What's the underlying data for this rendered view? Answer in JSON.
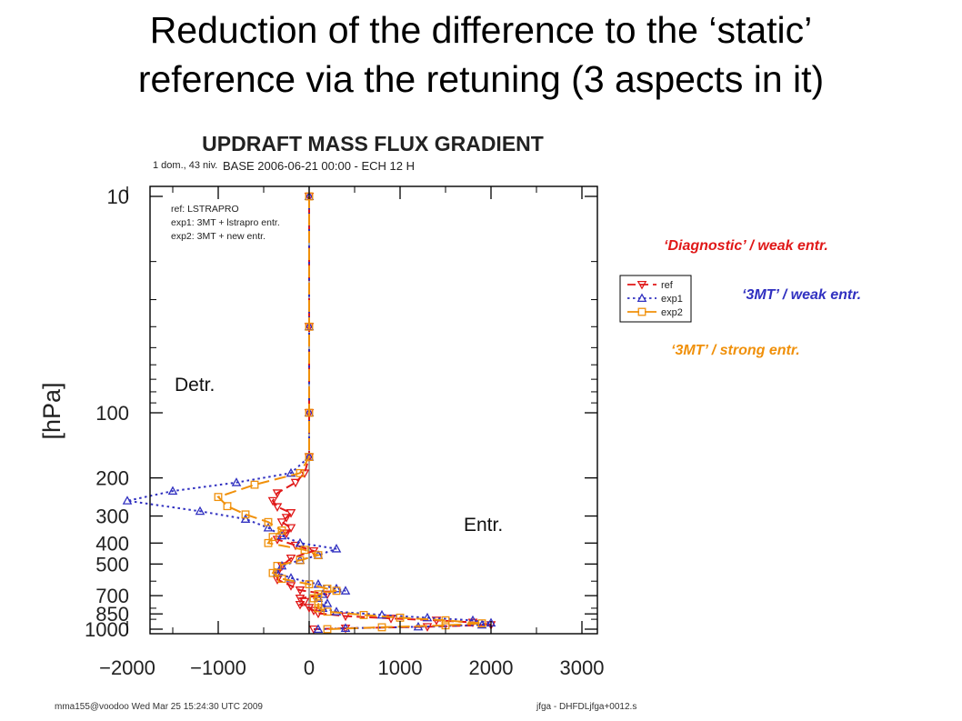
{
  "slide": {
    "title_line1": "Reduction of the difference to the ‘static’",
    "title_line2": "reference via the retuning (3 aspects in it)"
  },
  "annotations": {
    "diagnostic": "‘Diagnostic’ / weak entr.",
    "mt_weak": "‘3MT’ / weak entr.",
    "mt_strong": "‘3MT’ / strong entr.",
    "detr": "Detr.",
    "entr": "Entr.",
    "colors": {
      "diagnostic": "#e01818",
      "mt_weak": "#3030c0",
      "mt_strong": "#f0900a"
    }
  },
  "footer": {
    "left": "mma155@voodoo Wed Mar 25 15:24:30 UTC 2009",
    "right": "jfga - DHFDLjfga+0012.s"
  },
  "chart_data": {
    "type": "line",
    "title": "UPDRAFT MASS FLUX GRADIENT",
    "subtitle_left": "1 dom., 43 niv.",
    "subtitle": "BASE 2006-06-21 00:00 - ECH 12 H",
    "ylabel": "[hPa]",
    "xlabel": "",
    "xlim": [
      -2000,
      3000
    ],
    "x_ticks": [
      -2000,
      -1000,
      0,
      1000,
      2000,
      3000
    ],
    "y_scale": "log",
    "y_reversed": true,
    "y_ticks": [
      10,
      100,
      200,
      300,
      400,
      500,
      700,
      850,
      1000
    ],
    "zero_line": true,
    "legend_text": [
      "ref:  LSTRAPRO",
      "exp1: 3MT + lstrapro entr.",
      "exp2: 3MT + new entr."
    ],
    "legend_box_position": "right",
    "series": [
      {
        "name": "ref",
        "color": "#e01818",
        "dash": "dash",
        "marker": "triangle-down",
        "points": [
          [
            0,
            10
          ],
          [
            0,
            20
          ],
          [
            0,
            40
          ],
          [
            0,
            70
          ],
          [
            0,
            100
          ],
          [
            0,
            130
          ],
          [
            0,
            160
          ],
          [
            -50,
            190
          ],
          [
            -150,
            210
          ],
          [
            -350,
            235
          ],
          [
            -400,
            255
          ],
          [
            -350,
            272
          ],
          [
            -200,
            290
          ],
          [
            -250,
            305
          ],
          [
            -300,
            320
          ],
          [
            -200,
            340
          ],
          [
            -250,
            360
          ],
          [
            -350,
            385
          ],
          [
            -150,
            410
          ],
          [
            50,
            435
          ],
          [
            -200,
            470
          ],
          [
            -300,
            510
          ],
          [
            -350,
            550
          ],
          [
            -350,
            590
          ],
          [
            -200,
            630
          ],
          [
            -100,
            660
          ],
          [
            200,
            690
          ],
          [
            -100,
            720
          ],
          [
            -50,
            745
          ],
          [
            -100,
            770
          ],
          [
            0,
            795
          ],
          [
            50,
            820
          ],
          [
            100,
            845
          ],
          [
            400,
            870
          ],
          [
            900,
            892
          ],
          [
            1400,
            910
          ],
          [
            1800,
            930
          ],
          [
            2000,
            955
          ],
          [
            1300,
            975
          ],
          [
            400,
            990
          ],
          [
            50,
            1000
          ]
        ]
      },
      {
        "name": "exp1",
        "color": "#3030c0",
        "dash": "dot",
        "marker": "triangle-up",
        "points": [
          [
            0,
            10
          ],
          [
            0,
            20
          ],
          [
            0,
            40
          ],
          [
            0,
            70
          ],
          [
            0,
            100
          ],
          [
            0,
            130
          ],
          [
            0,
            160
          ],
          [
            -200,
            190
          ],
          [
            -800,
            210
          ],
          [
            -1500,
            230
          ],
          [
            -2000,
            255
          ],
          [
            -1200,
            285
          ],
          [
            -700,
            310
          ],
          [
            -450,
            340
          ],
          [
            -300,
            370
          ],
          [
            -100,
            400
          ],
          [
            300,
            425
          ],
          [
            100,
            455
          ],
          [
            -100,
            480
          ],
          [
            -300,
            510
          ],
          [
            -350,
            550
          ],
          [
            -200,
            580
          ],
          [
            100,
            620
          ],
          [
            300,
            650
          ],
          [
            400,
            665
          ],
          [
            150,
            690
          ],
          [
            100,
            720
          ],
          [
            200,
            760
          ],
          [
            150,
            800
          ],
          [
            300,
            830
          ],
          [
            800,
            860
          ],
          [
            1300,
            885
          ],
          [
            1800,
            910
          ],
          [
            2000,
            935
          ],
          [
            1900,
            955
          ],
          [
            1200,
            975
          ],
          [
            400,
            990
          ],
          [
            100,
            1000
          ]
        ]
      },
      {
        "name": "exp2",
        "color": "#f0900a",
        "dash": "longdash",
        "marker": "square",
        "points": [
          [
            0,
            10
          ],
          [
            0,
            20
          ],
          [
            0,
            40
          ],
          [
            0,
            70
          ],
          [
            0,
            100
          ],
          [
            0,
            130
          ],
          [
            0,
            160
          ],
          [
            -100,
            190
          ],
          [
            -600,
            215
          ],
          [
            -1000,
            245
          ],
          [
            -900,
            270
          ],
          [
            -700,
            295
          ],
          [
            -450,
            320
          ],
          [
            -300,
            350
          ],
          [
            -400,
            375
          ],
          [
            -450,
            400
          ],
          [
            -50,
            430
          ],
          [
            100,
            455
          ],
          [
            -100,
            480
          ],
          [
            -350,
            510
          ],
          [
            -400,
            550
          ],
          [
            -300,
            585
          ],
          [
            0,
            620
          ],
          [
            200,
            650
          ],
          [
            300,
            665
          ],
          [
            100,
            690
          ],
          [
            50,
            720
          ],
          [
            100,
            760
          ],
          [
            100,
            800
          ],
          [
            200,
            830
          ],
          [
            600,
            860
          ],
          [
            1000,
            885
          ],
          [
            1500,
            910
          ],
          [
            1900,
            940
          ],
          [
            1500,
            960
          ],
          [
            800,
            980
          ],
          [
            200,
            1000
          ]
        ]
      }
    ]
  }
}
